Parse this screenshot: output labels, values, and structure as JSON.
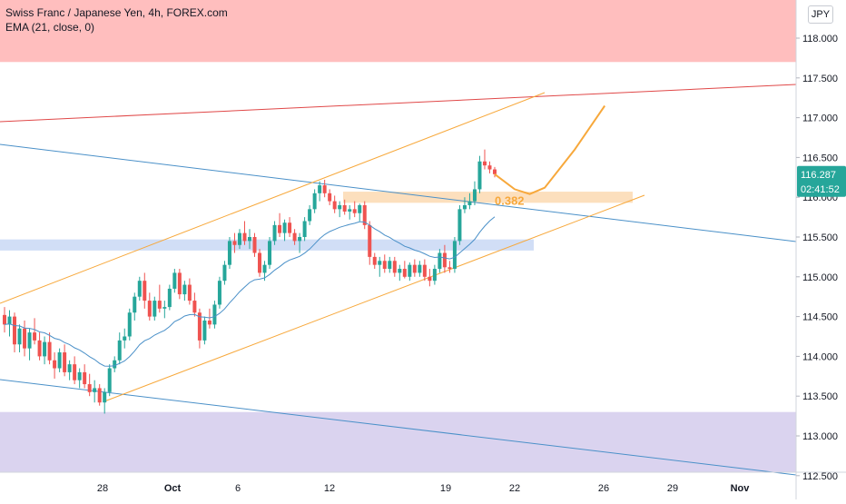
{
  "legend": {
    "title": "Swiss Franc / Japanese Yen, 4h, FOREX.com",
    "indicator": "EMA (21, close, 0)"
  },
  "currency_label": "JPY",
  "price_tag": {
    "value": "116.287",
    "countdown": "02:41:52"
  },
  "fib_label": "0.382",
  "colors": {
    "up": "#26a69a",
    "down": "#ef5350",
    "ema": "#4a90c8",
    "channel": "#f7a83b",
    "red_line": "#e04848",
    "blue_line": "#4a90c8"
  },
  "chart_data": {
    "type": "candlestick",
    "ylim": [
      112.5,
      118.5
    ],
    "y_ticks": [
      "118.000",
      "117.500",
      "117.000",
      "116.500",
      "116.000",
      "115.500",
      "115.000",
      "114.500",
      "114.000",
      "113.500",
      "113.000",
      "112.500"
    ],
    "x_ticks": [
      "28",
      "Oct",
      "6",
      "12",
      "19",
      "22",
      "26",
      "29",
      "Nov"
    ],
    "zones": [
      {
        "name": "resistance-zone",
        "y": [
          117.7,
          118.5
        ],
        "color": "#ffb3b3"
      },
      {
        "name": "support-zone-mid",
        "y": [
          115.33,
          115.47
        ],
        "color": "#c9d8f5"
      },
      {
        "name": "fib-zone",
        "y": [
          115.93,
          116.07
        ],
        "color": "#fcd9b2"
      },
      {
        "name": "demand-zone-low",
        "y": [
          112.5,
          113.3
        ],
        "color": "#d3cbec"
      }
    ],
    "candles": [
      [
        114.52,
        114.62,
        114.3,
        114.4
      ],
      [
        114.4,
        114.58,
        114.25,
        114.5
      ],
      [
        114.5,
        114.55,
        114.05,
        114.15
      ],
      [
        114.15,
        114.4,
        114.05,
        114.35
      ],
      [
        114.35,
        114.45,
        114.0,
        114.1
      ],
      [
        114.1,
        114.35,
        113.95,
        114.3
      ],
      [
        114.3,
        114.48,
        114.15,
        114.2
      ],
      [
        114.2,
        114.3,
        113.95,
        114.0
      ],
      [
        114.0,
        114.25,
        113.9,
        114.18
      ],
      [
        114.18,
        114.3,
        113.9,
        113.95
      ],
      [
        113.95,
        114.05,
        113.72,
        113.85
      ],
      [
        113.85,
        114.1,
        113.8,
        114.05
      ],
      [
        114.05,
        114.15,
        113.75,
        113.8
      ],
      [
        113.8,
        113.95,
        113.7,
        113.9
      ],
      [
        113.9,
        114.0,
        113.65,
        113.7
      ],
      [
        113.7,
        113.85,
        113.6,
        113.8
      ],
      [
        113.8,
        113.9,
        113.6,
        113.65
      ],
      [
        113.65,
        113.78,
        113.5,
        113.55
      ],
      [
        113.55,
        113.7,
        113.42,
        113.6
      ],
      [
        113.6,
        113.65,
        113.38,
        113.42
      ],
      [
        113.42,
        113.6,
        113.28,
        113.55
      ],
      [
        113.55,
        113.9,
        113.5,
        113.85
      ],
      [
        113.85,
        114.0,
        113.8,
        113.95
      ],
      [
        113.95,
        114.3,
        113.9,
        114.2
      ],
      [
        114.2,
        114.35,
        114.1,
        114.25
      ],
      [
        114.25,
        114.6,
        114.2,
        114.55
      ],
      [
        114.55,
        114.8,
        114.45,
        114.75
      ],
      [
        114.75,
        115.0,
        114.7,
        114.95
      ],
      [
        114.95,
        115.05,
        114.6,
        114.7
      ],
      [
        114.7,
        114.8,
        114.45,
        114.5
      ],
      [
        114.5,
        114.75,
        114.45,
        114.7
      ],
      [
        114.7,
        114.9,
        114.55,
        114.6
      ],
      [
        114.6,
        114.7,
        114.48,
        114.62
      ],
      [
        114.62,
        114.9,
        114.58,
        114.85
      ],
      [
        114.85,
        115.1,
        114.8,
        115.05
      ],
      [
        115.05,
        115.1,
        114.72,
        114.78
      ],
      [
        114.78,
        114.95,
        114.7,
        114.9
      ],
      [
        114.9,
        114.98,
        114.65,
        114.7
      ],
      [
        114.7,
        114.8,
        114.5,
        114.55
      ],
      [
        114.55,
        114.6,
        114.1,
        114.2
      ],
      [
        114.2,
        114.5,
        114.15,
        114.45
      ],
      [
        114.45,
        114.6,
        114.35,
        114.4
      ],
      [
        114.4,
        114.7,
        114.35,
        114.65
      ],
      [
        114.65,
        115.0,
        114.6,
        114.95
      ],
      [
        114.95,
        115.2,
        114.9,
        115.15
      ],
      [
        115.15,
        115.5,
        115.1,
        115.45
      ],
      [
        115.45,
        115.55,
        115.3,
        115.4
      ],
      [
        115.4,
        115.6,
        115.35,
        115.55
      ],
      [
        115.55,
        115.7,
        115.4,
        115.45
      ],
      [
        115.45,
        115.6,
        115.35,
        115.5
      ],
      [
        115.5,
        115.55,
        115.25,
        115.3
      ],
      [
        115.3,
        115.35,
        115.0,
        115.05
      ],
      [
        115.05,
        115.2,
        114.95,
        115.15
      ],
      [
        115.15,
        115.5,
        115.1,
        115.45
      ],
      [
        115.45,
        115.7,
        115.4,
        115.65
      ],
      [
        115.65,
        115.8,
        115.5,
        115.55
      ],
      [
        115.55,
        115.72,
        115.45,
        115.68
      ],
      [
        115.68,
        115.75,
        115.5,
        115.55
      ],
      [
        115.55,
        115.6,
        115.4,
        115.45
      ],
      [
        115.45,
        115.55,
        115.3,
        115.5
      ],
      [
        115.5,
        115.75,
        115.45,
        115.7
      ],
      [
        115.7,
        115.9,
        115.65,
        115.85
      ],
      [
        115.85,
        116.1,
        115.8,
        116.05
      ],
      [
        116.05,
        116.2,
        115.95,
        116.15
      ],
      [
        116.15,
        116.22,
        116.0,
        116.05
      ],
      [
        116.05,
        116.1,
        115.9,
        115.95
      ],
      [
        115.95,
        116.02,
        115.8,
        115.85
      ],
      [
        115.85,
        115.95,
        115.75,
        115.9
      ],
      [
        115.9,
        115.97,
        115.78,
        115.82
      ],
      [
        115.82,
        115.9,
        115.72,
        115.85
      ],
      [
        115.85,
        115.95,
        115.75,
        115.8
      ],
      [
        115.8,
        115.92,
        115.7,
        115.9
      ],
      [
        115.9,
        115.95,
        115.6,
        115.65
      ],
      [
        115.65,
        115.7,
        115.15,
        115.25
      ],
      [
        115.25,
        115.3,
        115.1,
        115.15
      ],
      [
        115.15,
        115.25,
        115.0,
        115.2
      ],
      [
        115.2,
        115.28,
        115.05,
        115.1
      ],
      [
        115.1,
        115.25,
        115.05,
        115.2
      ],
      [
        115.2,
        115.25,
        115.0,
        115.05
      ],
      [
        115.05,
        115.15,
        114.95,
        115.1
      ],
      [
        115.1,
        115.2,
        114.98,
        115.0
      ],
      [
        115.0,
        115.18,
        114.95,
        115.15
      ],
      [
        115.15,
        115.22,
        115.0,
        115.05
      ],
      [
        115.05,
        115.2,
        115.0,
        115.15
      ],
      [
        115.15,
        115.22,
        114.95,
        115.0
      ],
      [
        115.0,
        115.1,
        114.88,
        114.95
      ],
      [
        114.95,
        115.15,
        114.9,
        115.1
      ],
      [
        115.1,
        115.35,
        115.05,
        115.3
      ],
      [
        115.3,
        115.4,
        115.05,
        115.12
      ],
      [
        115.12,
        115.2,
        115.05,
        115.1
      ],
      [
        115.1,
        115.5,
        115.05,
        115.45
      ],
      [
        115.45,
        115.9,
        115.4,
        115.85
      ],
      [
        115.85,
        116.0,
        115.8,
        115.9
      ],
      [
        115.9,
        116.05,
        115.85,
        115.95
      ],
      [
        115.95,
        116.2,
        115.9,
        116.1
      ],
      [
        116.1,
        116.52,
        116.05,
        116.45
      ],
      [
        116.45,
        116.6,
        116.35,
        116.4
      ],
      [
        116.4,
        116.45,
        116.3,
        116.35
      ],
      [
        116.35,
        116.38,
        116.25,
        116.29
      ]
    ],
    "projection": [
      [
        0,
        116.29
      ],
      [
        4,
        116.1
      ],
      [
        7,
        116.04
      ],
      [
        10,
        116.12
      ],
      [
        16,
        116.6
      ],
      [
        22,
        117.15
      ]
    ]
  }
}
